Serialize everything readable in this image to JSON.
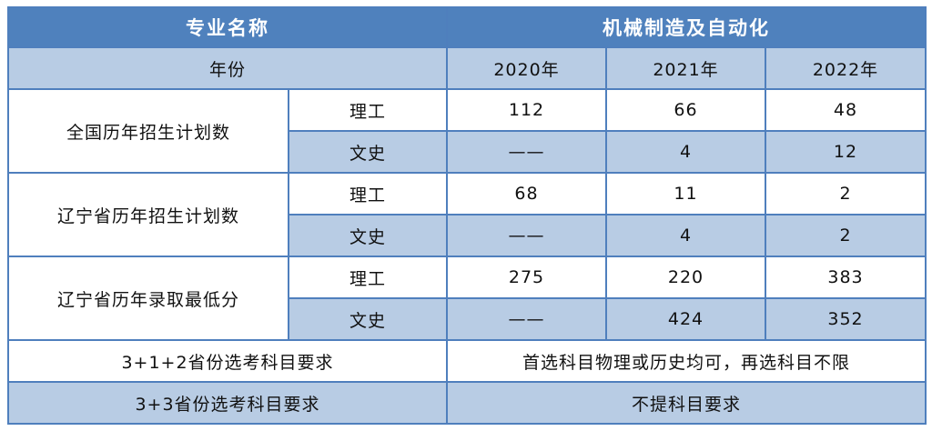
{
  "header": {
    "major_label": "专业名称",
    "major_value": "机械制造及自动化"
  },
  "years_row": {
    "label": "年份",
    "years": [
      "2020年",
      "2021年",
      "2022年"
    ]
  },
  "groups": [
    {
      "label": "全国历年招生计划数",
      "rows": [
        {
          "category": "理工",
          "values": [
            "112",
            "66",
            "48"
          ]
        },
        {
          "category": "文史",
          "values": [
            "——",
            "4",
            "12"
          ]
        }
      ]
    },
    {
      "label": "辽宁省历年招生计划数",
      "rows": [
        {
          "category": "理工",
          "values": [
            "68",
            "11",
            "2"
          ]
        },
        {
          "category": "文史",
          "values": [
            "——",
            "4",
            "2"
          ]
        }
      ]
    },
    {
      "label": "辽宁省历年录取最低分",
      "rows": [
        {
          "category": "理工",
          "values": [
            "275",
            "220",
            "383"
          ]
        },
        {
          "category": "文史",
          "values": [
            "——",
            "424",
            "352"
          ]
        }
      ]
    }
  ],
  "requirements": [
    {
      "label": "3+1+2省份选考科目要求",
      "value": "首选科目物理或历史均可，再选科目不限"
    },
    {
      "label": "3+3省份选考科目要求",
      "value": "不提科目要求"
    }
  ],
  "colors": {
    "header_bg": "#4f81bd",
    "band_bg": "#b8cce4",
    "border": "#4f7fbd"
  }
}
